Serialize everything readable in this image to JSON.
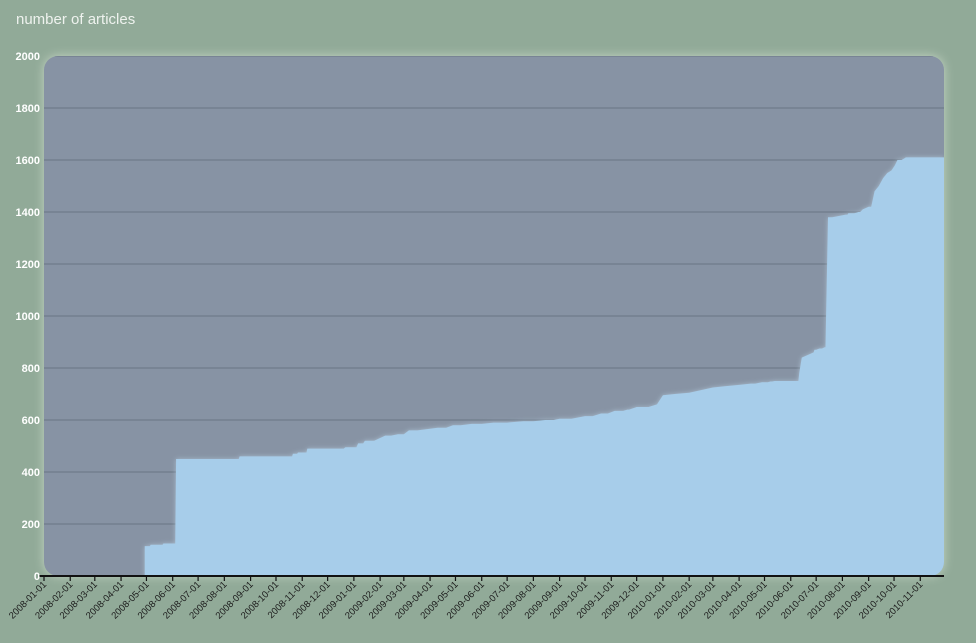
{
  "chart_data": {
    "type": "area",
    "title": "number of articles",
    "xlabel": "",
    "ylabel": "",
    "ylim": [
      0,
      2000
    ],
    "yticks": [
      0,
      200,
      400,
      600,
      800,
      1000,
      1200,
      1400,
      1600,
      1800,
      2000
    ],
    "xlim": [
      "2008-01-01",
      "2010-11-29"
    ],
    "xticks": [
      "2008-01-01",
      "2008-02-01",
      "2008-03-01",
      "2008-04-01",
      "2008-05-01",
      "2008-06-01",
      "2008-07-01",
      "2008-08-01",
      "2008-09-01",
      "2008-10-01",
      "2008-11-01",
      "2008-12-01",
      "2009-01-01",
      "2009-02-01",
      "2009-03-01",
      "2009-04-01",
      "2009-05-01",
      "2009-06-01",
      "2009-07-01",
      "2009-08-01",
      "2009-09-01",
      "2009-10-01",
      "2009-11-01",
      "2009-12-01",
      "2010-01-01",
      "2010-02-01",
      "2010-03-01",
      "2010-04-01",
      "2010-05-01",
      "2010-06-01",
      "2010-07-01",
      "2010-08-01",
      "2010-09-01",
      "2010-10-01",
      "2010-11-01"
    ],
    "grid": true,
    "colors": {
      "plot_background": "#8793a4",
      "area_fill": "#a7cdea",
      "page_background": "#91aa98",
      "axis": "#111111"
    },
    "series": [
      {
        "x": [
          "2008-01-01",
          "2008-04-29",
          "2008-04-29",
          "2008-05-05",
          "2008-05-06",
          "2008-05-20",
          "2008-05-21",
          "2008-06-04",
          "2008-06-05",
          "2008-08-18",
          "2008-08-19",
          "2008-10-20",
          "2008-10-21",
          "2008-10-26",
          "2008-10-27",
          "2008-11-06",
          "2008-11-07",
          "2008-12-20",
          "2008-12-22",
          "2009-01-04",
          "2009-01-06",
          "2009-01-12",
          "2009-01-14",
          "2009-01-25",
          "2009-02-07",
          "2009-02-14",
          "2009-02-22",
          "2009-03-01",
          "2009-03-07",
          "2009-03-17",
          "2009-04-10",
          "2009-04-20",
          "2009-04-28",
          "2009-05-07",
          "2009-05-20",
          "2009-06-01",
          "2009-06-15",
          "2009-07-01",
          "2009-07-20",
          "2009-08-01",
          "2009-08-15",
          "2009-08-25",
          "2009-09-01",
          "2009-09-15",
          "2009-10-01",
          "2009-10-10",
          "2009-10-20",
          "2009-10-28",
          "2009-11-05",
          "2009-11-15",
          "2009-11-20",
          "2009-11-22",
          "2009-12-01",
          "2009-12-15",
          "2009-12-25",
          "2010-01-01",
          "2010-01-15",
          "2010-02-01",
          "2010-02-15",
          "2010-03-01",
          "2010-03-15",
          "2010-04-01",
          "2010-04-15",
          "2010-04-20",
          "2010-04-28",
          "2010-05-05",
          "2010-05-08",
          "2010-05-10",
          "2010-05-13",
          "2010-06-10",
          "2010-06-11",
          "2010-06-13",
          "2010-06-14",
          "2010-06-28",
          "2010-06-29",
          "2010-07-01",
          "2010-07-05",
          "2010-07-08",
          "2010-07-11",
          "2010-07-12",
          "2010-07-15",
          "2010-07-20",
          "2010-08-05",
          "2010-08-07",
          "2010-08-08",
          "2010-08-15",
          "2010-08-20",
          "2010-08-22",
          "2010-08-25",
          "2010-09-01",
          "2010-09-04",
          "2010-09-08",
          "2010-09-13",
          "2010-09-18",
          "2010-09-23",
          "2010-09-28",
          "2010-10-02",
          "2010-10-05",
          "2010-10-10",
          "2010-10-15",
          "2010-10-20",
          "2010-11-29"
        ],
        "y": [
          0,
          0,
          115,
          115,
          120,
          120,
          125,
          125,
          450,
          450,
          460,
          460,
          470,
          470,
          475,
          475,
          490,
          490,
          495,
          495,
          510,
          510,
          520,
          520,
          540,
          540,
          545,
          545,
          560,
          560,
          570,
          570,
          580,
          580,
          585,
          585,
          590,
          590,
          595,
          595,
          600,
          600,
          605,
          605,
          615,
          615,
          625,
          625,
          635,
          635,
          640,
          640,
          650,
          650,
          660,
          695,
          700,
          705,
          715,
          725,
          730,
          735,
          740,
          740,
          745,
          745,
          748,
          748,
          750,
          750,
          780,
          820,
          840,
          860,
          870,
          870,
          875,
          875,
          880,
          880,
          1380,
          1380,
          1390,
          1390,
          1395,
          1395,
          1400,
          1400,
          1410,
          1420,
          1420,
          1480,
          1500,
          1530,
          1550,
          1560,
          1580,
          1600,
          1600,
          1610,
          1610,
          1610
        ]
      }
    ]
  }
}
